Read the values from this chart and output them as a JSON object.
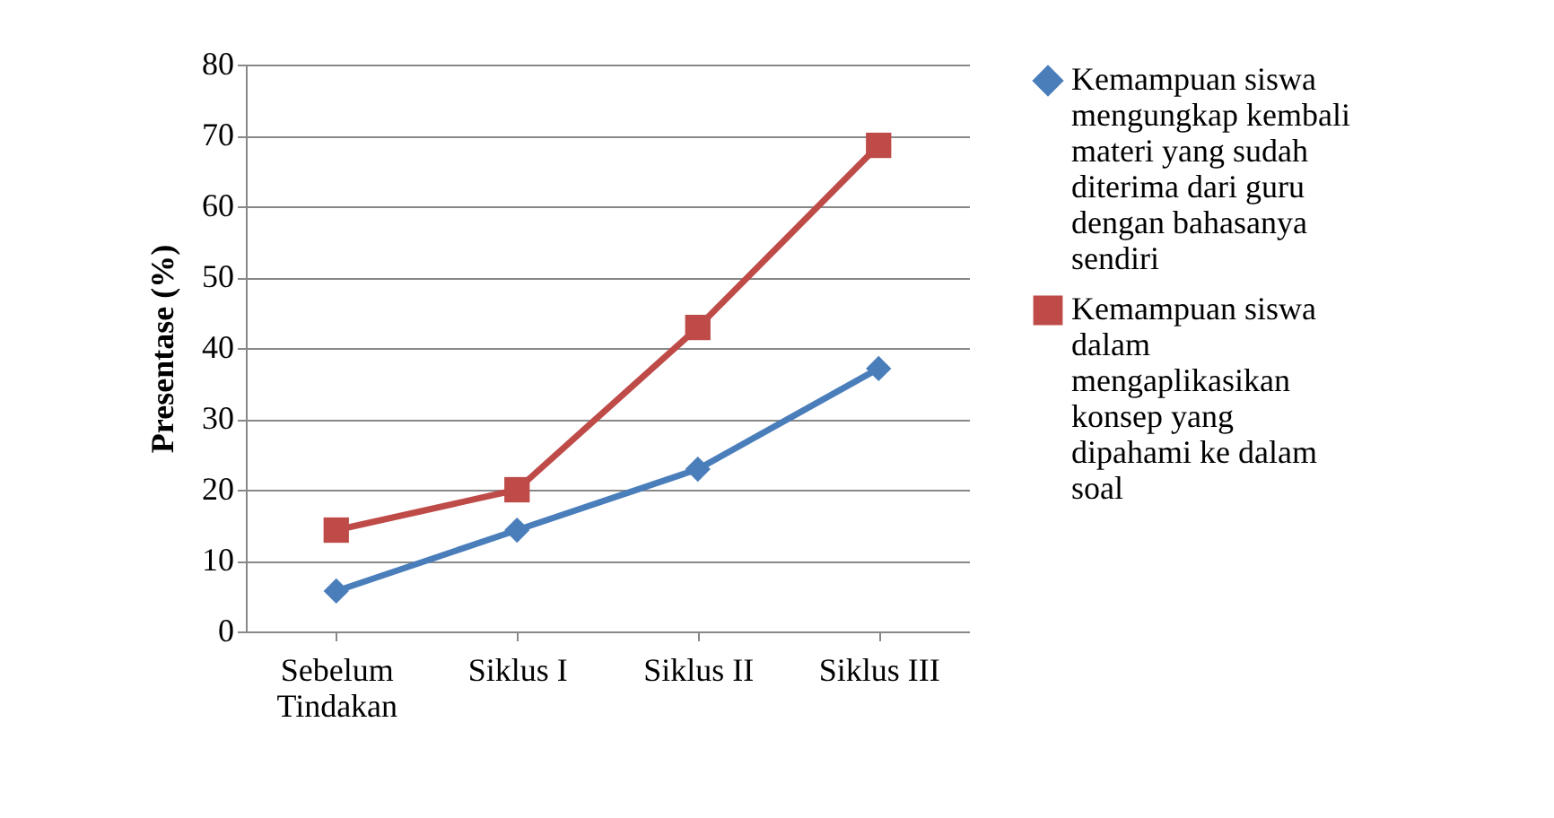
{
  "chart_data": {
    "type": "line",
    "ylabel": "Presentase (%)",
    "categories": [
      "Sebelum Tindakan",
      "Siklus I",
      "Siklus II",
      "Siklus III"
    ],
    "series": [
      {
        "name": "Kemampuan siswa mengungkap kembali materi yang sudah diterima dari guru dengan bahasanya sendiri",
        "color": "#4a7ebb",
        "marker": "diamond",
        "values": [
          5.7,
          14.3,
          22.9,
          37.1
        ]
      },
      {
        "name": "Kemampuan siswa dalam mengaplikasikan konsep yang dipahami ke dalam soal",
        "color": "#be4b48",
        "marker": "square",
        "values": [
          14.3,
          20,
          42.9,
          68.6
        ]
      }
    ],
    "ylim": [
      0,
      80
    ],
    "yticks": [
      0,
      10,
      20,
      30,
      40,
      50,
      60,
      70,
      80
    ],
    "grid": "y",
    "legend": "right"
  }
}
